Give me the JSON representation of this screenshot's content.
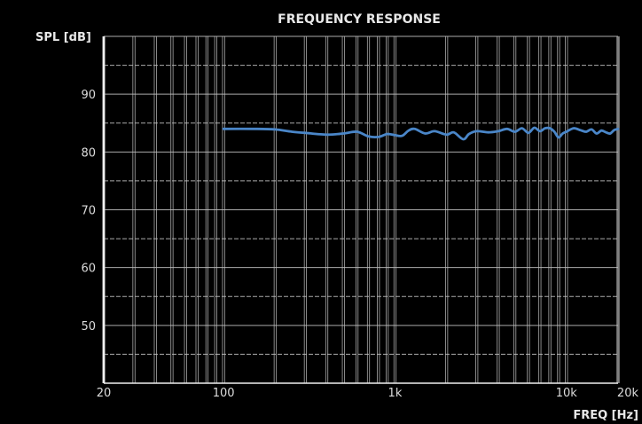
{
  "chart_data": {
    "type": "line",
    "title": "FREQUENCY RESPONSE",
    "xlabel": "FREQ [Hz]",
    "ylabel": "SPL [dB]",
    "x_scale": "log",
    "xlim": [
      20,
      20000
    ],
    "ylim": [
      40,
      100
    ],
    "grid": true,
    "x_ticks": [
      {
        "value": 20,
        "label": "20"
      },
      {
        "value": 100,
        "label": "100"
      },
      {
        "value": 1000,
        "label": "1k"
      },
      {
        "value": 10000,
        "label": "10k"
      },
      {
        "value": 20000,
        "label": "20k"
      }
    ],
    "y_ticks": [
      {
        "value": 50,
        "label": "50"
      },
      {
        "value": 60,
        "label": "60"
      },
      {
        "value": 70,
        "label": "70"
      },
      {
        "value": 80,
        "label": "80"
      },
      {
        "value": 90,
        "label": "90"
      }
    ],
    "line_color": "#4a86c8",
    "grid_color": "#bdbdbd",
    "series": [
      {
        "x": [
          100,
          150,
          200,
          250,
          300,
          400,
          500,
          600,
          700,
          800,
          900,
          1000,
          1100,
          1200,
          1300,
          1500,
          1700,
          2000,
          2200,
          2500,
          2700,
          3000,
          3500,
          4000,
          4500,
          5000,
          5500,
          6000,
          6500,
          7000,
          7500,
          8000,
          8500,
          9000,
          9500,
          10000,
          11000,
          12000,
          13000,
          14000,
          15000,
          16000,
          17000,
          18000,
          19000,
          20000
        ],
        "y": [
          84.0,
          84.0,
          83.9,
          83.5,
          83.3,
          83.0,
          83.2,
          83.5,
          82.7,
          82.6,
          83.1,
          82.9,
          82.8,
          83.7,
          84.0,
          83.2,
          83.6,
          83.0,
          83.4,
          82.2,
          83.1,
          83.6,
          83.4,
          83.6,
          84.0,
          83.5,
          84.1,
          83.3,
          84.2,
          83.6,
          84.1,
          84.1,
          83.5,
          82.5,
          83.2,
          83.5,
          84.1,
          83.8,
          83.5,
          83.9,
          83.2,
          83.7,
          83.4,
          83.2,
          83.8,
          84.0
        ]
      }
    ]
  }
}
